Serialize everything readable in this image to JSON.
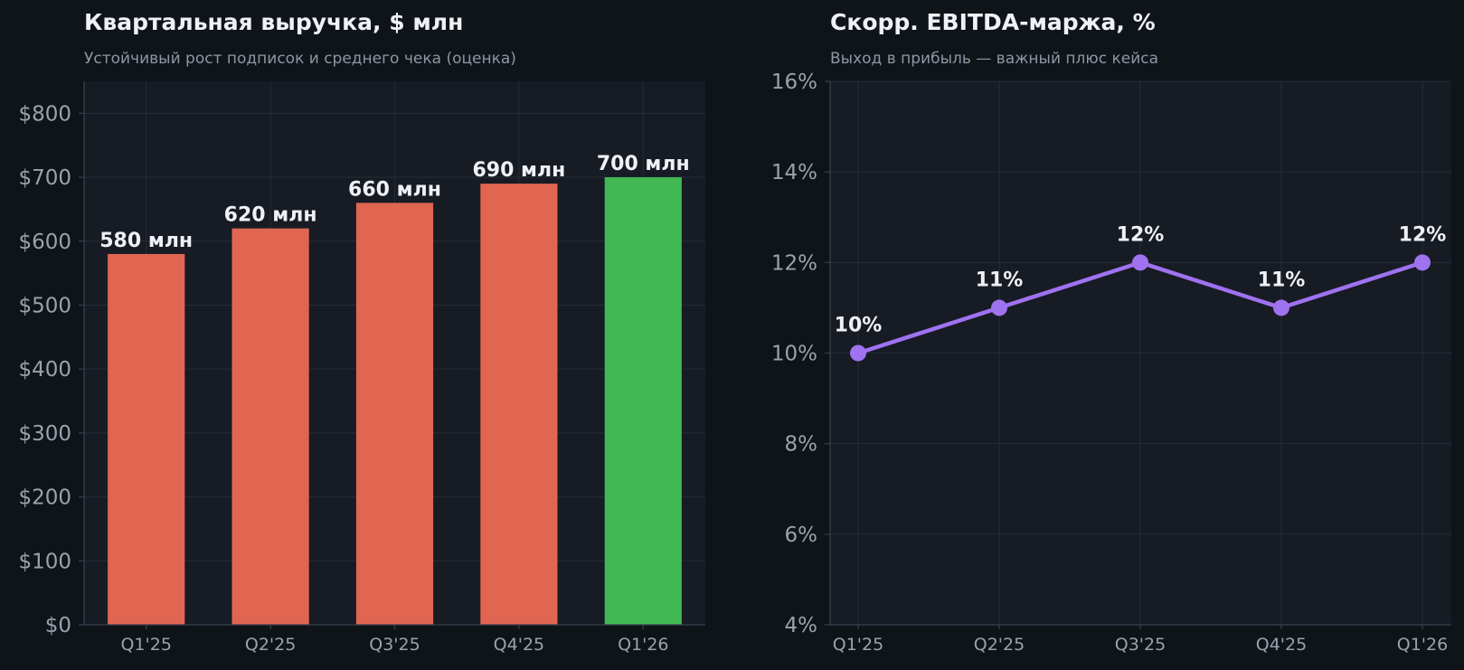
{
  "theme": {
    "background": "#0f1419",
    "plot_background": "#171b24",
    "grid": "#262c36",
    "axis": "#3a414d",
    "tick_text": "#9aa2ad",
    "label_text": "#eef1f5",
    "bar_color": "#e06652",
    "highlight_bar_color": "#41b853",
    "line_color": "#9f72f0"
  },
  "chart_data": [
    {
      "type": "bar",
      "title": "Квартальная выручка, $ млн",
      "subtitle": "Устойчивый рост подписок и среднего чека (оценка)",
      "categories": [
        "Q1'25",
        "Q2'25",
        "Q3'25",
        "Q4'25",
        "Q1'26"
      ],
      "values": [
        580,
        620,
        660,
        690,
        700
      ],
      "data_labels": [
        "580 млн",
        "620 млн",
        "660 млн",
        "690 млн",
        "700 млн"
      ],
      "highlight_index": 4,
      "ylim": [
        0,
        850
      ],
      "yticks": [
        0,
        100,
        200,
        300,
        400,
        500,
        600,
        700,
        800
      ],
      "ytick_labels": [
        "$0",
        "$100",
        "$200",
        "$300",
        "$400",
        "$500",
        "$600",
        "$700",
        "$800"
      ],
      "xlabel": "",
      "ylabel": "",
      "grid": true,
      "legend": "none"
    },
    {
      "type": "line",
      "title": "Скорр. EBITDA-маржа, %",
      "subtitle": "Выход в прибыль — важный плюс кейса",
      "categories": [
        "Q1'25",
        "Q2'25",
        "Q3'25",
        "Q4'25",
        "Q1'26"
      ],
      "values": [
        10,
        11,
        12,
        11,
        12
      ],
      "data_labels": [
        "10%",
        "11%",
        "12%",
        "11%",
        "12%"
      ],
      "ylim": [
        4,
        16
      ],
      "yticks": [
        4,
        6,
        8,
        10,
        12,
        14,
        16
      ],
      "ytick_labels": [
        "4%",
        "6%",
        "8%",
        "10%",
        "12%",
        "14%",
        "16%"
      ],
      "xlabel": "",
      "ylabel": "",
      "grid": true,
      "legend": "none"
    }
  ]
}
